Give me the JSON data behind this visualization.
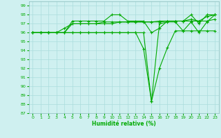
{
  "xlabel": "Humidité relative (%)",
  "xlim": [
    -0.5,
    23.5
  ],
  "ylim": [
    87,
    99.5
  ],
  "yticks": [
    87,
    88,
    89,
    90,
    91,
    92,
    93,
    94,
    95,
    96,
    97,
    98,
    99
  ],
  "xticks": [
    0,
    1,
    2,
    3,
    4,
    5,
    6,
    7,
    8,
    9,
    10,
    11,
    12,
    13,
    14,
    15,
    16,
    17,
    18,
    19,
    20,
    21,
    22,
    23
  ],
  "bg_color": "#cff0f0",
  "grid_color": "#aadddd",
  "line_color": "#00aa00",
  "series": [
    [
      96.0,
      96.0,
      96.0,
      96.0,
      96.0,
      97.3,
      97.3,
      97.3,
      97.3,
      97.3,
      98.0,
      98.0,
      97.3,
      97.3,
      97.3,
      96.0,
      96.5,
      97.3,
      97.3,
      97.3,
      98.0,
      97.0,
      98.0,
      98.0
    ],
    [
      96.0,
      96.0,
      96.0,
      96.0,
      96.0,
      97.0,
      97.0,
      97.0,
      97.0,
      97.2,
      97.2,
      97.2,
      97.2,
      97.2,
      97.2,
      97.2,
      97.2,
      97.3,
      97.3,
      97.3,
      97.5,
      97.3,
      97.8,
      98.0
    ],
    [
      96.0,
      96.0,
      96.0,
      96.0,
      96.5,
      97.0,
      97.0,
      97.0,
      97.0,
      97.0,
      97.0,
      97.2,
      97.2,
      97.2,
      97.2,
      97.2,
      97.3,
      97.3,
      97.3,
      97.3,
      97.3,
      97.3,
      97.3,
      97.5
    ],
    [
      96.0,
      96.0,
      96.0,
      96.0,
      96.0,
      96.0,
      96.0,
      96.0,
      96.0,
      96.0,
      96.0,
      96.0,
      96.0,
      96.0,
      96.0,
      88.3,
      92.0,
      94.3,
      96.2,
      96.2,
      96.2,
      96.2,
      96.2,
      96.2
    ],
    [
      96.0,
      96.0,
      96.0,
      96.0,
      96.0,
      96.0,
      96.0,
      96.0,
      96.0,
      96.0,
      96.0,
      96.0,
      96.0,
      96.0,
      94.2,
      88.3,
      97.0,
      97.2,
      97.2,
      96.2,
      97.2,
      96.0,
      97.2,
      98.0
    ]
  ]
}
